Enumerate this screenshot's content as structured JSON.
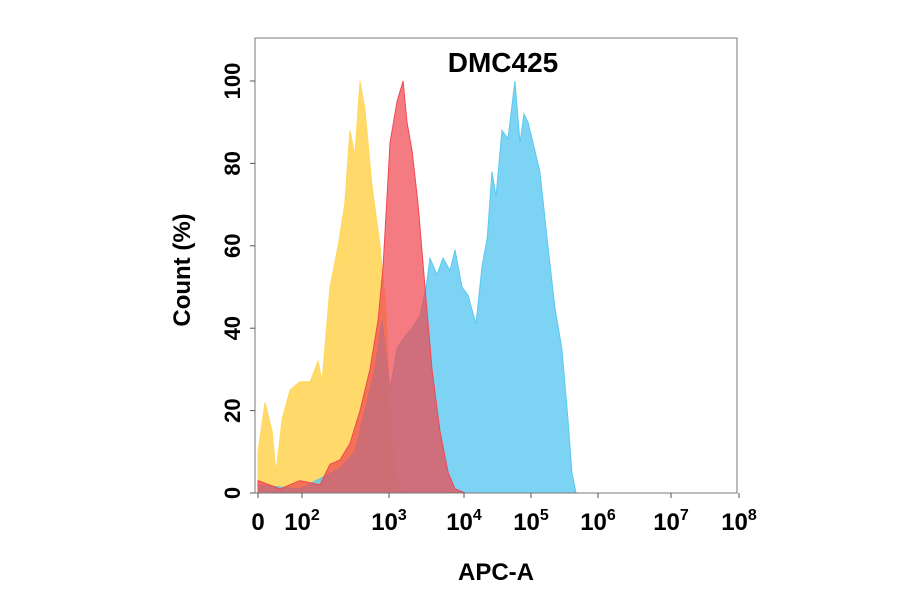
{
  "chart_data": {
    "type": "area",
    "title": "DMC425",
    "xlabel": "APC-A",
    "ylabel": "Count  (%)",
    "x_scale": "biexponential",
    "x_ticks": [
      {
        "value": 0,
        "base": "0",
        "exp": ""
      },
      {
        "value": 100,
        "base": "10",
        "exp": "2"
      },
      {
        "value": 1000,
        "base": "10",
        "exp": "3"
      },
      {
        "value": 10000,
        "base": "10",
        "exp": "4"
      },
      {
        "value": 100000,
        "base": "10",
        "exp": "5"
      },
      {
        "value": 1000000,
        "base": "10",
        "exp": "6"
      },
      {
        "value": 10000000,
        "base": "10",
        "exp": "7"
      },
      {
        "value": 100000000,
        "base": "10",
        "exp": "8"
      }
    ],
    "y_ticks": [
      0,
      20,
      40,
      60,
      80,
      100
    ],
    "ylim": [
      0,
      110
    ],
    "grid": false,
    "series": [
      {
        "color": "#FFD761",
        "points": [
          [
            0,
            10
          ],
          [
            16,
            22
          ],
          [
            32,
            15
          ],
          [
            41,
            5
          ],
          [
            55,
            18
          ],
          [
            73,
            25
          ],
          [
            95,
            27
          ],
          [
            124,
            27
          ],
          [
            153,
            32
          ],
          [
            170,
            27
          ],
          [
            210,
            50
          ],
          [
            260,
            60
          ],
          [
            310,
            70
          ],
          [
            355,
            88
          ],
          [
            406,
            82
          ],
          [
            464,
            100
          ],
          [
            530,
            93
          ],
          [
            635,
            75
          ],
          [
            790,
            60
          ],
          [
            920,
            45
          ],
          [
            1030,
            20
          ],
          [
            1200,
            5
          ],
          [
            1400,
            1
          ],
          [
            1900,
            0
          ]
        ]
      },
      {
        "color": "#5BC8F0",
        "points": [
          [
            0,
            2
          ],
          [
            95,
            1
          ],
          [
            273,
            6
          ],
          [
            406,
            10
          ],
          [
            530,
            20
          ],
          [
            690,
            30
          ],
          [
            830,
            42
          ],
          [
            1030,
            25
          ],
          [
            1280,
            35
          ],
          [
            1630,
            38
          ],
          [
            2030,
            40
          ],
          [
            2590,
            43
          ],
          [
            3120,
            50
          ],
          [
            3520,
            57
          ],
          [
            4370,
            53
          ],
          [
            5250,
            57
          ],
          [
            6510,
            54
          ],
          [
            7590,
            59
          ],
          [
            9400,
            50
          ],
          [
            11480,
            48
          ],
          [
            15100,
            41
          ],
          [
            18560,
            55
          ],
          [
            22300,
            62
          ],
          [
            26200,
            78
          ],
          [
            30000,
            72
          ],
          [
            36900,
            88
          ],
          [
            45300,
            86
          ],
          [
            57600,
            100
          ],
          [
            68500,
            85
          ],
          [
            78500,
            92
          ],
          [
            90200,
            90
          ],
          [
            107100,
            85
          ],
          [
            136000,
            78
          ],
          [
            179000,
            60
          ],
          [
            227000,
            45
          ],
          [
            289000,
            35
          ],
          [
            355000,
            18
          ],
          [
            408000,
            5
          ],
          [
            469000,
            0
          ]
        ]
      },
      {
        "color": "#F04850",
        "points": [
          [
            0,
            3
          ],
          [
            50,
            1
          ],
          [
            95,
            3
          ],
          [
            161,
            2
          ],
          [
            210,
            7
          ],
          [
            273,
            8
          ],
          [
            355,
            12
          ],
          [
            464,
            20
          ],
          [
            605,
            30
          ],
          [
            750,
            42
          ],
          [
            855,
            55
          ],
          [
            1030,
            85
          ],
          [
            1280,
            95
          ],
          [
            1540,
            100
          ],
          [
            1740,
            90
          ],
          [
            2030,
            83
          ],
          [
            2440,
            70
          ],
          [
            3020,
            50
          ],
          [
            3740,
            30
          ],
          [
            4780,
            15
          ],
          [
            6130,
            5
          ],
          [
            7580,
            1
          ],
          [
            10350,
            0
          ]
        ]
      }
    ]
  }
}
